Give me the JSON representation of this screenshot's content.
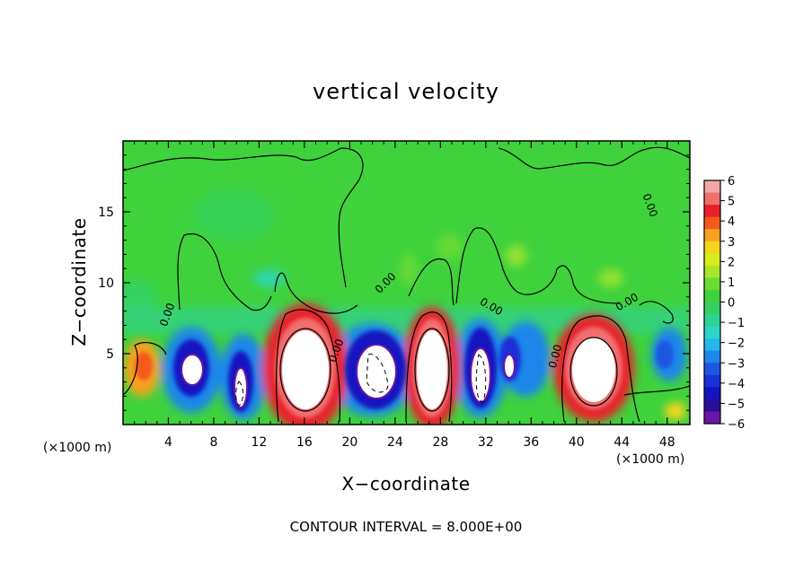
{
  "chart_data": {
    "type": "heatmap",
    "title": "vertical velocity",
    "xlabel": "X−coordinate",
    "ylabel": "Z−coordinate",
    "x_unit_left": "(×1000 m)",
    "x_unit_right": "(×1000 m)",
    "footer": "CONTOUR INTERVAL = 8.000E+00",
    "xlim": [
      0,
      50
    ],
    "ylim": [
      0,
      20
    ],
    "x_ticks": [
      "4",
      "8",
      "12",
      "16",
      "20",
      "24",
      "28",
      "32",
      "36",
      "40",
      "44",
      "48"
    ],
    "y_ticks": [
      "5",
      "10",
      "15"
    ],
    "colorbar": {
      "range": [
        -6,
        6
      ],
      "tick_labels": [
        "6",
        "5",
        "4",
        "3",
        "2",
        "1",
        "0",
        "−1",
        "−2",
        "−3",
        "−4",
        "−5",
        "−6"
      ],
      "colors": [
        "#f4a6a6",
        "#f07070",
        "#e8202a",
        "#f35a1c",
        "#f7a21e",
        "#f2d61e",
        "#d6ec1e",
        "#a8e62a",
        "#6bdc32",
        "#3fd23c",
        "#34d160",
        "#2fd394",
        "#2bd6c8",
        "#23b8ea",
        "#1e86ea",
        "#1c56e2",
        "#1b2fd8",
        "#1414c0",
        "#2a0e9a",
        "#6a14a8"
      ]
    },
    "contour_labels": [
      "0.00",
      "0.00",
      "0.00",
      "0.00",
      "0.00",
      "0.00",
      "0.00"
    ],
    "cells": [
      {
        "x": 4,
        "z": 3,
        "w": -0.8
      },
      {
        "x": 6,
        "z": 3.5,
        "w": -4.5
      },
      {
        "x": 10,
        "z": 2.5,
        "w": -4.0
      },
      {
        "x": 16,
        "z": 4,
        "w": 6.0
      },
      {
        "x": 20,
        "z": 4,
        "w": -4.0
      },
      {
        "x": 22,
        "z": 3.5,
        "w": -6.0
      },
      {
        "x": 28,
        "z": 4,
        "w": 6.0
      },
      {
        "x": 31,
        "z": 3.5,
        "w": -5.5
      },
      {
        "x": 34,
        "z": 4,
        "w": -3.5
      },
      {
        "x": 41,
        "z": 4,
        "w": 6.0
      },
      {
        "x": 47,
        "z": 5,
        "w": -3.0
      },
      {
        "x": 2,
        "z": 4,
        "w": 2.5
      },
      {
        "x": 49,
        "z": 1,
        "w": 2.0
      }
    ]
  }
}
